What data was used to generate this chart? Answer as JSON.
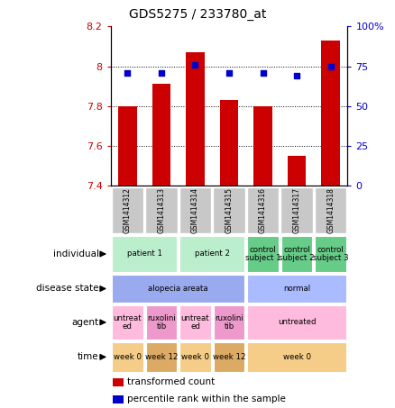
{
  "title": "GDS5275 / 233780_at",
  "samples": [
    "GSM1414312",
    "GSM1414313",
    "GSM1414314",
    "GSM1414315",
    "GSM1414316",
    "GSM1414317",
    "GSM1414318"
  ],
  "bar_values": [
    7.8,
    7.91,
    8.07,
    7.83,
    7.8,
    7.55,
    8.13
  ],
  "dot_values": [
    71,
    71,
    76,
    71,
    71,
    69,
    75
  ],
  "ylim_left": [
    7.4,
    8.2
  ],
  "ylim_right": [
    0,
    100
  ],
  "yticks_left": [
    7.4,
    7.6,
    7.8,
    8.0,
    8.2
  ],
  "ytick_labels_left": [
    "7.4",
    "7.6",
    "7.8",
    "8",
    "8.2"
  ],
  "yticks_right": [
    0,
    25,
    50,
    75,
    100
  ],
  "ytick_labels_right": [
    "0",
    "25",
    "50",
    "75",
    "100%"
  ],
  "bar_color": "#cc0000",
  "dot_color": "#0000cc",
  "sample_box_color": "#c8c8c8",
  "annotation_rows": [
    {
      "label": "individual",
      "cells": [
        {
          "text": "patient 1",
          "span": 2,
          "color": "#bbeecc"
        },
        {
          "text": "patient 2",
          "span": 2,
          "color": "#bbeecc"
        },
        {
          "text": "control\nsubject 1",
          "span": 1,
          "color": "#66cc88"
        },
        {
          "text": "control\nsubject 2",
          "span": 1,
          "color": "#66cc88"
        },
        {
          "text": "control\nsubject 3",
          "span": 1,
          "color": "#66cc88"
        }
      ]
    },
    {
      "label": "disease state",
      "cells": [
        {
          "text": "alopecia areata",
          "span": 4,
          "color": "#99aaee"
        },
        {
          "text": "normal",
          "span": 3,
          "color": "#aabbff"
        }
      ]
    },
    {
      "label": "agent",
      "cells": [
        {
          "text": "untreat\ned",
          "span": 1,
          "color": "#ffbbdd"
        },
        {
          "text": "ruxolini\ntib",
          "span": 1,
          "color": "#ee99cc"
        },
        {
          "text": "untreat\ned",
          "span": 1,
          "color": "#ffbbdd"
        },
        {
          "text": "ruxolini\ntib",
          "span": 1,
          "color": "#ee99cc"
        },
        {
          "text": "untreated",
          "span": 3,
          "color": "#ffbbdd"
        }
      ]
    },
    {
      "label": "time",
      "cells": [
        {
          "text": "week 0",
          "span": 1,
          "color": "#f5cc88"
        },
        {
          "text": "week 12",
          "span": 1,
          "color": "#ddaa66"
        },
        {
          "text": "week 0",
          "span": 1,
          "color": "#f5cc88"
        },
        {
          "text": "week 12",
          "span": 1,
          "color": "#ddaa66"
        },
        {
          "text": "week 0",
          "span": 3,
          "color": "#f5cc88"
        }
      ]
    }
  ],
  "legend_items": [
    {
      "color": "#cc0000",
      "label": "transformed count"
    },
    {
      "color": "#0000cc",
      "label": "percentile rank within the sample"
    }
  ]
}
